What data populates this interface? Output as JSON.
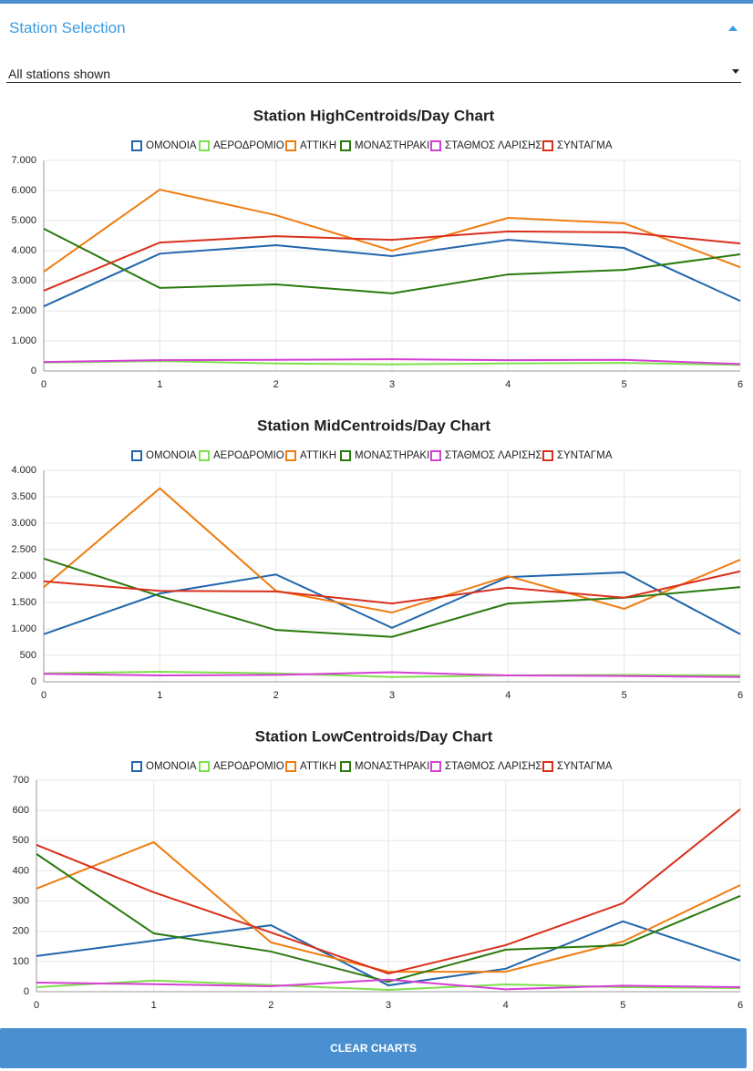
{
  "header": {
    "title": "Station Selection"
  },
  "dropdown": {
    "value": "All stations shown"
  },
  "button": {
    "label": "CLEAR CHARTS"
  },
  "chart_data": [
    {
      "type": "line",
      "title": "Station HighCentroids/Day Chart",
      "x": [
        0,
        1,
        2,
        3,
        4,
        5,
        6
      ],
      "xlim": [
        0,
        6
      ],
      "xticks": [
        0,
        1,
        2,
        3,
        4,
        5,
        6
      ],
      "ylim": [
        0,
        7000
      ],
      "yticks": [
        0,
        {
          "value": 1000,
          "label": "1.000"
        },
        {
          "value": 2000,
          "label": "2.000"
        },
        {
          "value": 3000,
          "label": "3.000"
        },
        {
          "value": 4000,
          "label": "4.000"
        },
        {
          "value": 5000,
          "label": "5.000"
        },
        {
          "value": 6000,
          "label": "6.000"
        },
        {
          "value": 7000,
          "label": "7.000"
        }
      ],
      "grid": true,
      "series": [
        {
          "name": "ΟΜΟΝΟΙΑ",
          "color": "#2166ac",
          "values": [
            2150,
            3900,
            4180,
            3820,
            4360,
            4090,
            2330
          ]
        },
        {
          "name": "ΑΕΡΟΔΡΟΜΙΟ",
          "color": "#7de04a",
          "values": [
            280,
            330,
            250,
            220,
            250,
            270,
            200
          ]
        },
        {
          "name": "ΑΤΤΙΚΗ",
          "color": "#ef7c10",
          "values": [
            3300,
            6030,
            5180,
            4000,
            5090,
            4910,
            3450
          ]
        },
        {
          "name": "ΜΟΝΑΣΤΗΡΑΚΙ",
          "color": "#2a7a0e",
          "values": [
            4730,
            2760,
            2880,
            2580,
            3210,
            3360,
            3880
          ]
        },
        {
          "name": "ΣΤΑΘΜΟΣ ΛΑΡΙΣΗΣ",
          "color": "#d63fd6",
          "values": [
            300,
            360,
            370,
            390,
            360,
            370,
            230
          ]
        },
        {
          "name": "ΣΥΝΤΑΓΜΑ",
          "color": "#d9301c",
          "values": [
            2670,
            4270,
            4480,
            4360,
            4640,
            4610,
            4240
          ]
        }
      ]
    },
    {
      "type": "line",
      "title": "Station MidCentroids/Day Chart",
      "x": [
        0,
        1,
        2,
        3,
        4,
        5,
        6
      ],
      "xlim": [
        0,
        6
      ],
      "xticks": [
        0,
        1,
        2,
        3,
        4,
        5,
        6
      ],
      "ylim": [
        0,
        4000
      ],
      "yticks": [
        0,
        500,
        {
          "value": 1000,
          "label": "1.000"
        },
        {
          "value": 1500,
          "label": "1.500"
        },
        {
          "value": 2000,
          "label": "2.000"
        },
        {
          "value": 2500,
          "label": "2.500"
        },
        {
          "value": 3000,
          "label": "3.000"
        },
        {
          "value": 3500,
          "label": "3.500"
        },
        {
          "value": 4000,
          "label": "4.000"
        }
      ],
      "grid": true,
      "series": [
        {
          "name": "ΟΜΟΝΟΙΑ",
          "color": "#2166ac",
          "values": [
            900,
            1670,
            2030,
            1020,
            1980,
            2070,
            900
          ]
        },
        {
          "name": "ΑΕΡΟΔΡΟΜΙΟ",
          "color": "#7de04a",
          "values": [
            160,
            190,
            160,
            90,
            120,
            130,
            120
          ]
        },
        {
          "name": "ΑΤΤΙΚΗ",
          "color": "#ef7c10",
          "values": [
            1790,
            3660,
            1720,
            1310,
            2000,
            1380,
            2310
          ]
        },
        {
          "name": "ΜΟΝΑΣΤΗΡΑΚΙ",
          "color": "#2a7a0e",
          "values": [
            2330,
            1620,
            980,
            850,
            1480,
            1590,
            1790
          ]
        },
        {
          "name": "ΣΤΑΘΜΟΣ ΛΑΡΙΣΗΣ",
          "color": "#d63fd6",
          "values": [
            150,
            120,
            130,
            180,
            120,
            110,
            90
          ]
        },
        {
          "name": "ΣΥΝΤΑΓΜΑ",
          "color": "#d9301c",
          "values": [
            1900,
            1720,
            1710,
            1480,
            1780,
            1590,
            2090
          ]
        }
      ]
    },
    {
      "type": "line",
      "title": "Station LowCentroids/Day Chart",
      "x": [
        0,
        1,
        2,
        3,
        4,
        5,
        6
      ],
      "xlim": [
        0,
        6
      ],
      "xticks": [
        0,
        1,
        2,
        3,
        4,
        5,
        6
      ],
      "ylim": [
        0,
        700
      ],
      "yticks": [
        0,
        100,
        200,
        300,
        400,
        500,
        600,
        700
      ],
      "grid": true,
      "series": [
        {
          "name": "ΟΜΟΝΟΙΑ",
          "color": "#2166ac",
          "values": [
            118,
            169,
            220,
            21,
            76,
            233,
            103
          ]
        },
        {
          "name": "ΑΕΡΟΔΡΟΜΙΟ",
          "color": "#7de04a",
          "values": [
            15,
            37,
            22,
            6,
            24,
            15,
            12
          ]
        },
        {
          "name": "ΑΤΤΙΚΗ",
          "color": "#ef7c10",
          "values": [
            341,
            495,
            163,
            66,
            66,
            166,
            353
          ]
        },
        {
          "name": "ΜΟΝΑΣΤΗΡΑΚΙ",
          "color": "#2a7a0e",
          "values": [
            456,
            193,
            133,
            33,
            139,
            154,
            317
          ]
        },
        {
          "name": "ΣΤΑΘΜΟΣ ΛΑΡΙΣΗΣ",
          "color": "#d63fd6",
          "values": [
            30,
            25,
            18,
            40,
            8,
            20,
            15
          ]
        },
        {
          "name": "ΣΥΝΤΑΓΜΑ",
          "color": "#d9301c",
          "values": [
            486,
            329,
            196,
            60,
            154,
            293,
            604
          ]
        }
      ]
    }
  ]
}
